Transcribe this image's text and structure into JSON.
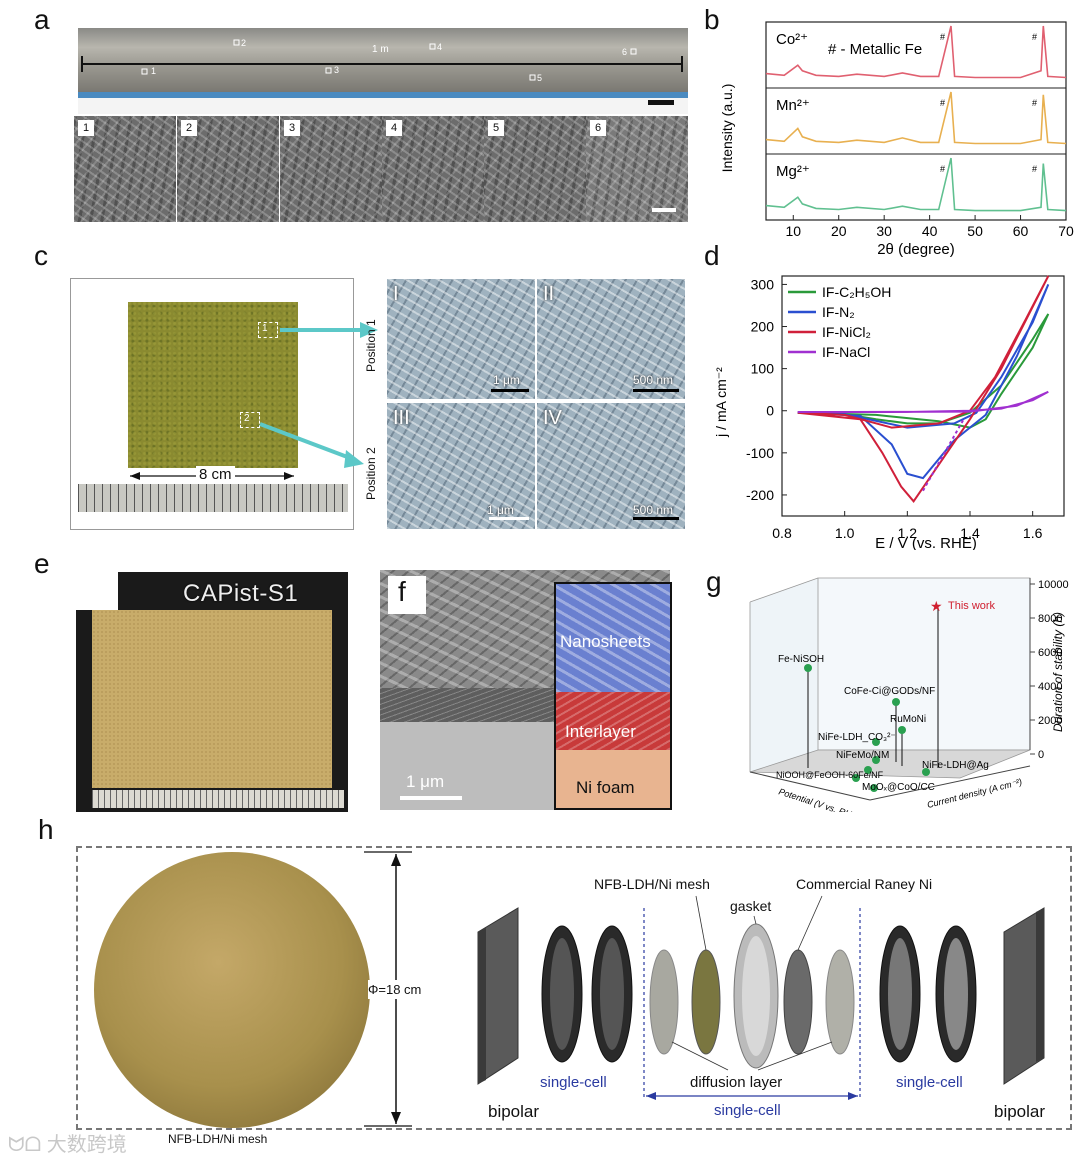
{
  "panel_labels": {
    "a": "a",
    "b": "b",
    "c": "c",
    "d": "d",
    "e": "e",
    "f": "f",
    "g": "g",
    "h": "h"
  },
  "a": {
    "length_label": "1 m",
    "positions": [
      "1",
      "2",
      "3",
      "4",
      "5",
      "6"
    ]
  },
  "b": {
    "legend_note": "# - Metallic Fe",
    "hash": "#",
    "ylabel": "Intensity (a.u.)",
    "xlabel": "2θ (degree)",
    "xticks": [
      "10",
      "20",
      "30",
      "40",
      "50",
      "60",
      "70"
    ]
  },
  "c": {
    "position1": "Position 1",
    "position2": "Position 2",
    "size_label": "8 cm",
    "box1": "1",
    "box2": "2",
    "sub_labels": [
      "I",
      "II",
      "III",
      "IV"
    ],
    "scales": [
      "1 μm",
      "500 nm",
      "1 μm",
      "500 nm"
    ]
  },
  "e": {
    "sample_name": "CAPist-S1"
  },
  "f": {
    "layer_top": "Nanosheets",
    "layer_mid": "Interlayer",
    "layer_bottom": "Ni foam",
    "scale": "1 μm"
  },
  "g": {
    "this_work": "This work",
    "zlabel": "Duration of stability (h)",
    "xlabel": "Potential (V vs. RHE)",
    "ylabel": "Current density (A cm⁻²)",
    "zticks": [
      "10000",
      "8000",
      "6000",
      "4000",
      "2000",
      "0"
    ],
    "points": [
      "Fe-NiSOH",
      "CoFe-Ci@GODs/NF",
      "RuMoNi",
      "NiFe-LDH_CO₃²⁻",
      "NiFeMo/NM",
      "NiOOH@FeOOH-60Fe/NF",
      "MoOₓ@CoO/CC",
      "NiFe-LDH@Ag"
    ]
  },
  "h": {
    "diameter": "Φ=18 cm",
    "sample_caption": "NFB-LDH/Ni mesh",
    "nfb": "NFB-LDH/Ni mesh",
    "gasket": "gasket",
    "raney": "Commercial Raney Ni",
    "diffusion": "diffusion layer",
    "single_cell_left": "single-cell",
    "single_cell_mid": "single-cell",
    "single_cell_right": "single-cell",
    "bipolar_left": "bipolar",
    "bipolar_right": "bipolar"
  },
  "watermark": "大数跨境",
  "chart_data": [
    {
      "type": "line",
      "title": "",
      "xlabel": "2θ (degree)",
      "ylabel": "Intensity (a.u.)",
      "xlim": [
        4,
        70
      ],
      "series": [
        {
          "name": "Co²⁺",
          "color": "#e06070",
          "x": [
            4,
            8,
            11,
            12,
            15,
            20,
            24,
            30,
            34,
            38,
            42,
            44.7,
            45.5,
            50,
            55,
            60,
            64.5,
            65,
            66,
            70
          ],
          "values": [
            0.15,
            0.12,
            0.3,
            0.2,
            0.12,
            0.1,
            0.14,
            0.1,
            0.16,
            0.1,
            0.1,
            1.0,
            0.1,
            0.08,
            0.08,
            0.08,
            0.2,
            1.0,
            0.1,
            0.08
          ]
        },
        {
          "name": "Mn²⁺",
          "color": "#e8b050",
          "x": [
            4,
            8,
            11,
            12,
            15,
            20,
            24,
            30,
            34,
            38,
            42,
            44.7,
            45.5,
            50,
            55,
            60,
            64.5,
            65,
            66,
            70
          ],
          "values": [
            0.15,
            0.12,
            0.35,
            0.2,
            0.12,
            0.1,
            0.14,
            0.1,
            0.18,
            0.1,
            0.1,
            1.0,
            0.1,
            0.08,
            0.08,
            0.08,
            0.15,
            0.95,
            0.1,
            0.08
          ]
        },
        {
          "name": "Mg²⁺",
          "color": "#60c090",
          "x": [
            4,
            8,
            11,
            12,
            15,
            20,
            24,
            30,
            34,
            38,
            42,
            44.7,
            45.5,
            50,
            55,
            60,
            64.5,
            65,
            66,
            70
          ],
          "values": [
            0.15,
            0.12,
            0.3,
            0.18,
            0.1,
            0.08,
            0.12,
            0.08,
            0.14,
            0.08,
            0.08,
            1.0,
            0.08,
            0.06,
            0.06,
            0.06,
            0.12,
            0.9,
            0.08,
            0.06
          ]
        }
      ]
    },
    {
      "type": "line",
      "title": "",
      "xlabel": "E / V (vs. RHE)",
      "ylabel": "j / mA cm⁻²",
      "xlim": [
        0.8,
        1.7
      ],
      "ylim": [
        -250,
        320
      ],
      "xticks": [
        "0.8",
        "1.0",
        "1.2",
        "1.4",
        "1.6"
      ],
      "yticks": [
        "300",
        "200",
        "100",
        "0",
        "-100",
        "-200"
      ],
      "series": [
        {
          "name": "IF-C₂H₅OH",
          "color": "#2a9a3a"
        },
        {
          "name": "IF-N₂",
          "color": "#2a4fd0"
        },
        {
          "name": "IF-NiCl₂",
          "color": "#d0203a"
        },
        {
          "name": "IF-NaCl",
          "color": "#a030d0"
        }
      ]
    }
  ]
}
